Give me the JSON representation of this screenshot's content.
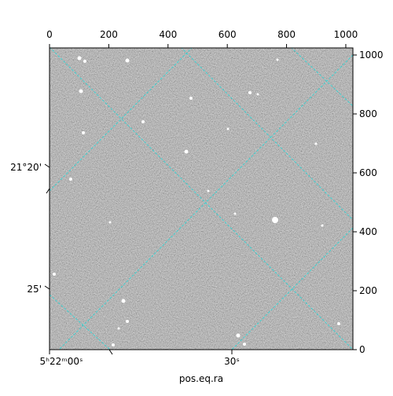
{
  "chart_data": {
    "type": "image",
    "xlabel": "pos.eq.ra",
    "xlim": [
      0,
      1024
    ],
    "xticks": [
      0,
      200,
      400,
      600,
      800,
      1000
    ],
    "ylim": [
      0,
      1024
    ],
    "yticks": [
      0,
      200,
      400,
      600,
      800,
      1000
    ],
    "ra_tick_labels": [
      "5ʰ22ᵐ00ˢ",
      "30ˢ"
    ],
    "dec_tick_labels": [
      "21°20'",
      "25'"
    ],
    "colormap": "gray"
  }
}
